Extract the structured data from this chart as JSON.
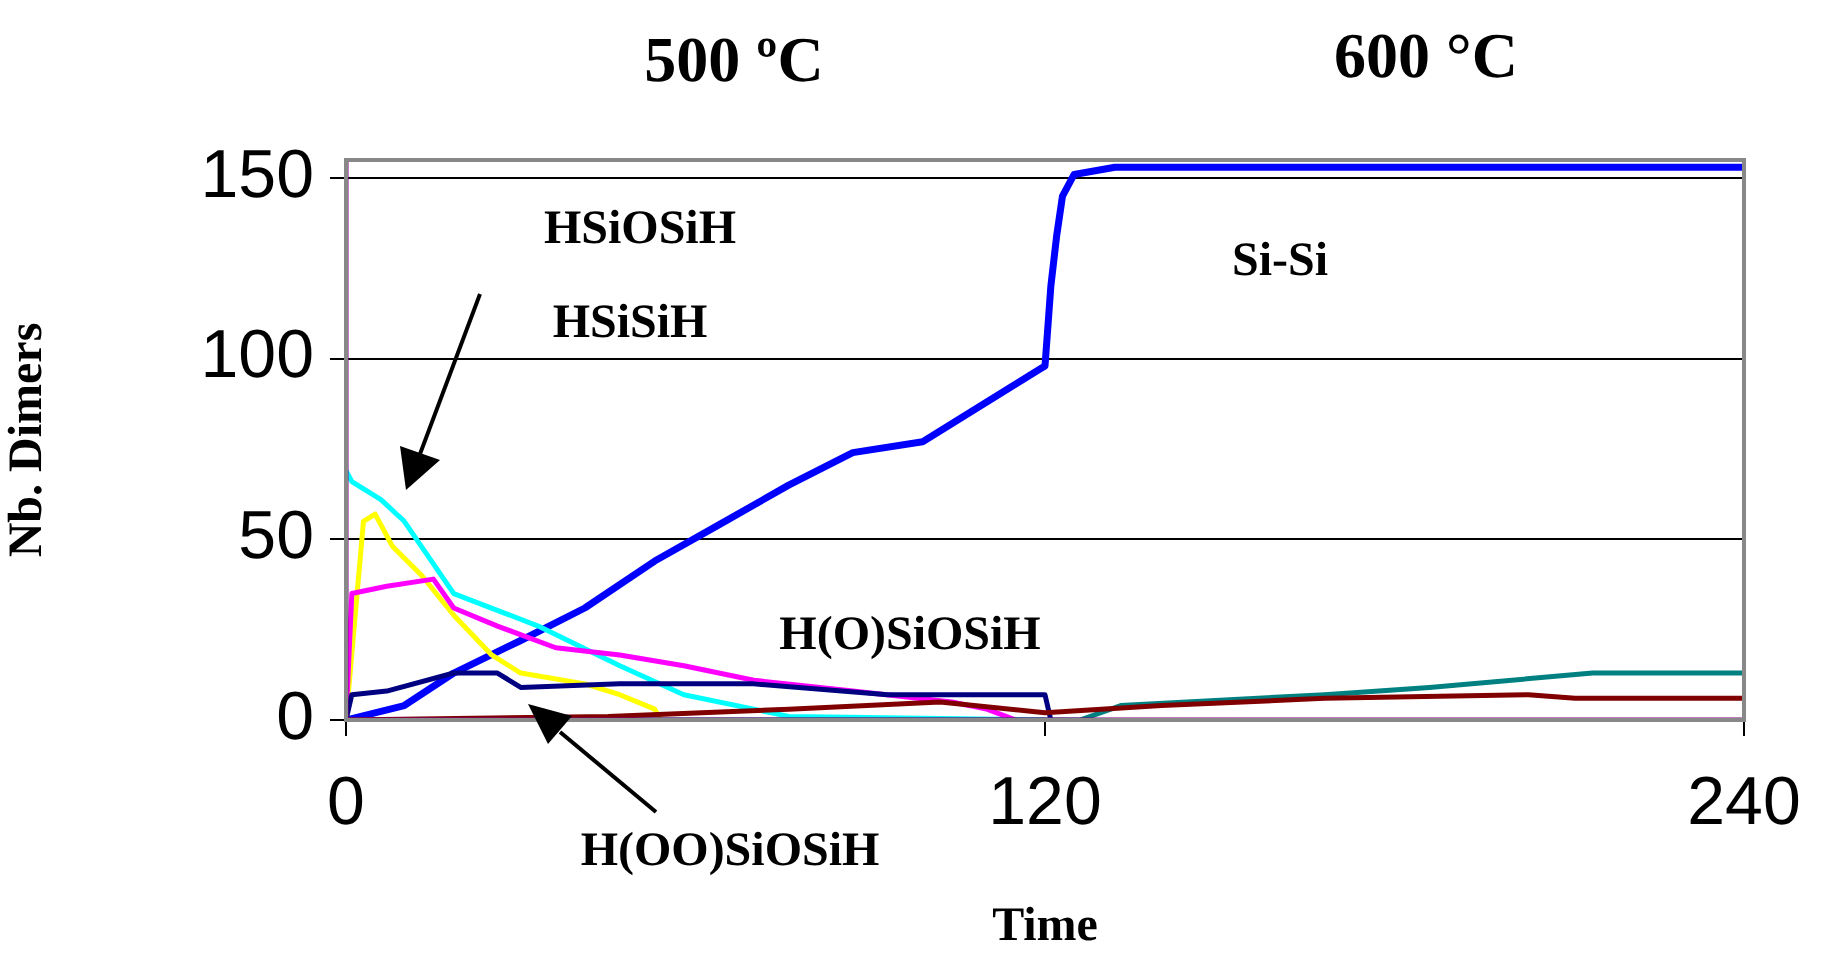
{
  "chart_data": {
    "type": "line",
    "xlabel": "Time",
    "ylabel": "Nb. Dimers",
    "xlim": [
      0,
      240
    ],
    "xticks": [
      0,
      120,
      240
    ],
    "ylim": [
      0,
      155
    ],
    "yticks": [
      0,
      50,
      100,
      150
    ],
    "grid": "y",
    "legend": false,
    "marker": "none",
    "line_style": "solid",
    "annotations": [
      "500 ºC",
      "600 °C",
      "HSiOSiH",
      "HSiSiH",
      "Si-Si",
      "H(O)SiOSiH",
      "H(OO)SiOSiH"
    ],
    "series": [
      {
        "color": "#800080",
        "x": [
          0,
          0,
          240
        ],
        "values": [
          155,
          0,
          0
        ]
      },
      {
        "color": "#800000",
        "x": [
          0,
          45,
          76,
          102,
          120,
          140,
          168,
          203,
          211,
          240
        ],
        "values": [
          0,
          1,
          3,
          5,
          2,
          4,
          6,
          7,
          6,
          6
        ]
      },
      {
        "color": "#008080",
        "x": [
          0,
          126,
          133,
          168,
          186,
          214,
          240
        ],
        "values": [
          0,
          0,
          4,
          7,
          9,
          13,
          13
        ]
      },
      {
        "color": "#000080",
        "x": [
          0,
          1,
          7,
          18.5,
          26,
          30,
          47,
          70,
          93,
          120,
          121
        ],
        "values": [
          0,
          7,
          8,
          13,
          13,
          9,
          10,
          10,
          7,
          7,
          0
        ]
      },
      {
        "color": "#ff00ff",
        "x": [
          0,
          1,
          7,
          15,
          18.5,
          26,
          36,
          47,
          58,
          70,
          87,
          104,
          110,
          115
        ],
        "values": [
          0,
          35,
          37,
          39,
          31,
          26,
          20,
          18,
          15,
          11,
          8,
          5,
          3,
          0
        ]
      },
      {
        "color": "#ffff00",
        "x": [
          0,
          3,
          5,
          8,
          13,
          18.5,
          25,
          30,
          41,
          47,
          53,
          54
        ],
        "values": [
          0,
          55,
          57,
          48,
          40,
          29,
          18,
          13,
          10,
          7,
          3,
          0
        ]
      },
      {
        "color": "#00ffff",
        "x": [
          0,
          1,
          6,
          10,
          18.5,
          33,
          47,
          58,
          70,
          76,
          120
        ],
        "values": [
          69,
          66,
          61,
          55,
          35,
          26,
          15,
          7,
          3,
          1,
          0
        ]
      },
      {
        "color": "#0000ff",
        "x": [
          0,
          10,
          18.5,
          30,
          41,
          53,
          64,
          76,
          87,
          99,
          110,
          119,
          120,
          121,
          122,
          123,
          125,
          132,
          240
        ],
        "values": [
          0,
          4,
          13,
          22,
          31,
          44,
          54,
          65,
          74,
          77,
          88,
          97,
          98,
          120,
          134,
          145,
          151,
          153,
          153
        ]
      }
    ]
  }
}
